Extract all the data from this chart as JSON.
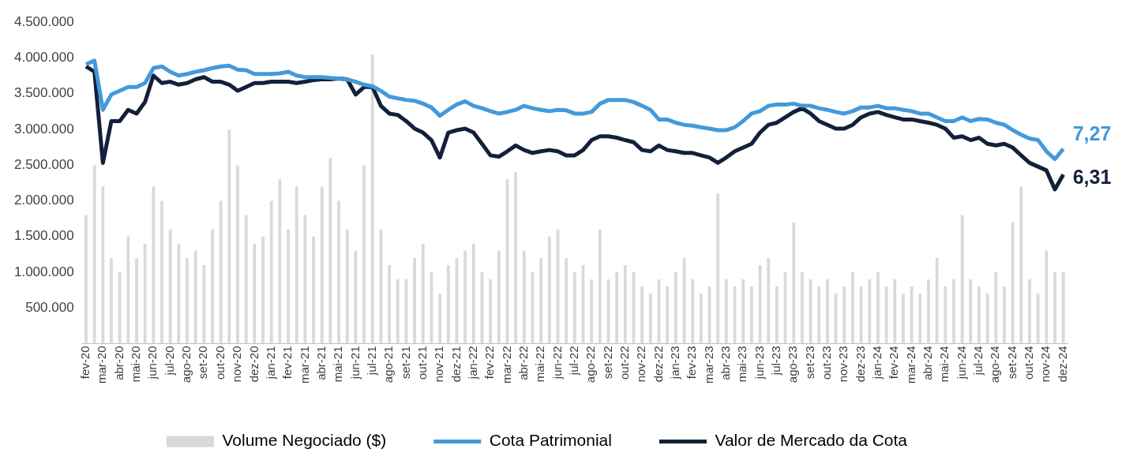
{
  "chart_data": {
    "type": "bar",
    "categories": [
      "fev-20",
      null,
      "mar-20",
      null,
      "abr-20",
      null,
      "mai-20",
      null,
      "jun-20",
      null,
      "jul-20",
      null,
      "ago-20",
      null,
      "set-20",
      null,
      "out-20",
      null,
      "nov-20",
      null,
      "dez-20",
      null,
      "jan-21",
      null,
      "fev-21",
      null,
      "mar-21",
      null,
      "abr-21",
      null,
      "mai-21",
      null,
      "jun-21",
      null,
      "jul-21",
      null,
      "ago-21",
      null,
      "set-21",
      null,
      "out-21",
      null,
      "nov-21",
      null,
      "dez-21",
      null,
      "jan-22",
      null,
      "fev-22",
      null,
      "mar-22",
      null,
      "abr-22",
      null,
      "mai-22",
      null,
      "jun-22",
      null,
      "jul-22",
      null,
      "ago-22",
      null,
      "set-22",
      null,
      "out-22",
      null,
      "nov-22",
      null,
      "dez-22",
      null,
      "jan-23",
      null,
      "fev-23",
      null,
      "mar-23",
      null,
      "abr-23",
      null,
      "mai-23",
      null,
      "jun-23",
      null,
      "jul-23",
      null,
      "ago-23",
      null,
      "set-23",
      null,
      "out-23",
      null,
      "nov-23",
      null,
      "dez-23",
      null,
      "jan-24",
      null,
      "fev-24",
      null,
      "mar-24",
      null,
      "abr-24",
      null,
      "mai-24",
      null,
      "jun-24",
      null,
      "jul-24",
      null,
      "ago-24",
      null,
      "set-24",
      null,
      "out-24",
      null,
      "nov-24",
      null,
      "dez-24"
    ],
    "series": [
      {
        "name": "Volume Negociado ($)",
        "color": "#d9d9d9",
        "values": [
          1800000,
          2500000,
          2200000,
          1200000,
          1000000,
          1500000,
          1200000,
          1400000,
          2200000,
          2000000,
          1600000,
          1400000,
          1200000,
          1300000,
          1100000,
          1600000,
          2000000,
          3000000,
          2500000,
          1800000,
          1400000,
          1500000,
          2000000,
          2300000,
          1600000,
          2200000,
          1800000,
          1500000,
          2200000,
          2600000,
          2000000,
          1600000,
          1300000,
          2500000,
          4050000,
          1600000,
          1100000,
          900000,
          900000,
          1200000,
          1400000,
          1000000,
          700000,
          1100000,
          1200000,
          1300000,
          1400000,
          1000000,
          900000,
          1300000,
          2300000,
          2400000,
          1300000,
          1000000,
          1200000,
          1500000,
          1600000,
          1200000,
          1000000,
          1100000,
          900000,
          1600000,
          900000,
          1000000,
          1100000,
          1000000,
          800000,
          700000,
          900000,
          800000,
          1000000,
          1200000,
          900000,
          700000,
          800000,
          2100000,
          900000,
          800000,
          900000,
          800000,
          1100000,
          1200000,
          800000,
          1000000,
          1700000,
          1000000,
          900000,
          800000,
          900000,
          700000,
          800000,
          1000000,
          800000,
          900000,
          1000000,
          800000,
          900000,
          700000,
          800000,
          700000,
          900000,
          1200000,
          800000,
          900000,
          1800000,
          900000,
          800000,
          700000,
          1000000,
          800000,
          1700000,
          2200000,
          900000,
          700000,
          1300000,
          1000000,
          1000000
        ]
      },
      {
        "name": "Cota Patrimonial",
        "type": "line",
        "axis": "y2",
        "color": "#4499d9",
        "values": [
          10.43,
          10.57,
          8.73,
          9.3,
          9.44,
          9.58,
          9.58,
          9.73,
          10.29,
          10.35,
          10.15,
          10.01,
          10.07,
          10.15,
          10.21,
          10.29,
          10.35,
          10.38,
          10.23,
          10.21,
          10.07,
          10.07,
          10.07,
          10.09,
          10.15,
          10.01,
          9.95,
          9.95,
          9.95,
          9.92,
          9.9,
          9.87,
          9.78,
          9.67,
          9.61,
          9.44,
          9.22,
          9.16,
          9.1,
          9.07,
          8.96,
          8.82,
          8.51,
          8.73,
          8.93,
          9.05,
          8.88,
          8.79,
          8.68,
          8.59,
          8.65,
          8.73,
          8.88,
          8.79,
          8.73,
          8.68,
          8.73,
          8.71,
          8.59,
          8.59,
          8.65,
          8.96,
          9.1,
          9.1,
          9.1,
          9.02,
          8.88,
          8.73,
          8.37,
          8.37,
          8.25,
          8.17,
          8.14,
          8.08,
          8.03,
          7.97,
          7.97,
          8.08,
          8.31,
          8.59,
          8.68,
          8.88,
          8.93,
          8.93,
          8.96,
          8.88,
          8.88,
          8.79,
          8.73,
          8.65,
          8.59,
          8.68,
          8.82,
          8.82,
          8.88,
          8.79,
          8.79,
          8.73,
          8.68,
          8.59,
          8.59,
          8.45,
          8.31,
          8.31,
          8.45,
          8.31,
          8.39,
          8.37,
          8.25,
          8.17,
          7.97,
          7.8,
          7.66,
          7.6,
          7.18,
          6.89,
          7.27
        ],
        "value_labels": [
          null,
          null,
          null,
          null,
          null,
          null,
          null,
          null,
          null,
          null,
          null,
          null,
          null,
          null,
          null,
          null,
          null,
          null,
          null,
          null,
          null,
          null,
          null,
          null,
          null,
          null,
          null,
          null,
          null,
          null,
          null,
          null,
          null,
          null,
          null,
          null,
          null,
          null,
          null,
          null,
          null,
          null,
          null,
          null,
          null,
          null,
          null,
          null,
          null,
          null,
          null,
          null,
          null,
          null,
          null,
          null,
          null,
          null,
          null,
          null,
          null,
          null,
          null,
          null,
          null,
          null,
          null,
          null,
          null,
          null,
          null,
          null,
          null,
          null,
          null,
          null,
          null,
          null,
          null,
          null,
          null,
          null,
          null,
          null,
          null,
          null,
          null,
          null,
          null,
          null,
          null,
          null,
          null,
          null,
          null,
          null,
          null,
          null,
          null,
          null,
          null,
          null,
          null,
          null,
          null,
          null,
          null,
          null,
          null,
          null,
          null,
          null,
          null,
          null,
          null,
          null,
          "7,27"
        ]
      },
      {
        "name": "Valor de Mercado da Cota",
        "type": "line",
        "axis": "y2",
        "color": "#13203a",
        "values": [
          10.35,
          10.15,
          6.75,
          8.31,
          8.31,
          8.73,
          8.59,
          9.02,
          10.01,
          9.73,
          9.78,
          9.67,
          9.73,
          9.87,
          9.95,
          9.78,
          9.78,
          9.67,
          9.44,
          9.58,
          9.73,
          9.73,
          9.78,
          9.78,
          9.78,
          9.73,
          9.78,
          9.84,
          9.87,
          9.87,
          9.9,
          9.87,
          9.3,
          9.58,
          9.58,
          8.88,
          8.59,
          8.54,
          8.31,
          8.03,
          7.88,
          7.6,
          6.95,
          7.88,
          7.97,
          8.03,
          7.88,
          7.46,
          7.03,
          6.98,
          7.18,
          7.4,
          7.23,
          7.12,
          7.18,
          7.23,
          7.18,
          7.03,
          7.03,
          7.23,
          7.6,
          7.74,
          7.74,
          7.69,
          7.6,
          7.52,
          7.23,
          7.18,
          7.4,
          7.23,
          7.18,
          7.12,
          7.12,
          7.03,
          6.95,
          6.75,
          6.95,
          7.18,
          7.32,
          7.46,
          7.88,
          8.17,
          8.25,
          8.45,
          8.65,
          8.79,
          8.59,
          8.31,
          8.17,
          8.03,
          8.03,
          8.17,
          8.45,
          8.59,
          8.65,
          8.54,
          8.45,
          8.37,
          8.37,
          8.31,
          8.25,
          8.17,
          8.03,
          7.69,
          7.74,
          7.6,
          7.69,
          7.46,
          7.4,
          7.46,
          7.32,
          7.03,
          6.75,
          6.61,
          6.47,
          5.76,
          6.31
        ],
        "value_labels": [
          null,
          null,
          null,
          null,
          null,
          null,
          null,
          null,
          null,
          null,
          null,
          null,
          null,
          null,
          null,
          null,
          null,
          null,
          null,
          null,
          null,
          null,
          null,
          null,
          null,
          null,
          null,
          null,
          null,
          null,
          null,
          null,
          null,
          null,
          null,
          null,
          null,
          null,
          null,
          null,
          null,
          null,
          null,
          null,
          null,
          null,
          null,
          null,
          null,
          null,
          null,
          null,
          null,
          null,
          null,
          null,
          null,
          null,
          null,
          null,
          null,
          null,
          null,
          null,
          null,
          null,
          null,
          null,
          null,
          null,
          null,
          null,
          null,
          null,
          null,
          null,
          null,
          null,
          null,
          null,
          null,
          null,
          null,
          null,
          null,
          null,
          null,
          null,
          null,
          null,
          null,
          null,
          null,
          null,
          null,
          null,
          null,
          null,
          null,
          null,
          null,
          null,
          null,
          null,
          null,
          null,
          null,
          null,
          null,
          null,
          null,
          null,
          null,
          null,
          null,
          null,
          "6,31"
        ]
      }
    ],
    "ylim": [
      0,
      4500000
    ],
    "yticks": [
      {
        "value": 500000,
        "label": "500.000"
      },
      {
        "value": 1000000,
        "label": "1.000.000"
      },
      {
        "value": 1500000,
        "label": "1.500.000"
      },
      {
        "value": 2000000,
        "label": "2.000.000"
      },
      {
        "value": 2500000,
        "label": "2.500.000"
      },
      {
        "value": 3000000,
        "label": "3.000.000"
      },
      {
        "value": 3500000,
        "label": "3.500.000"
      },
      {
        "value": 4000000,
        "label": "4.000.000"
      },
      {
        "value": 4500000,
        "label": "4.500.000"
      }
    ],
    "tick_labels": "xy",
    "grid": false,
    "legend": "bottom",
    "marker": "none",
    "line_style": "solid"
  }
}
